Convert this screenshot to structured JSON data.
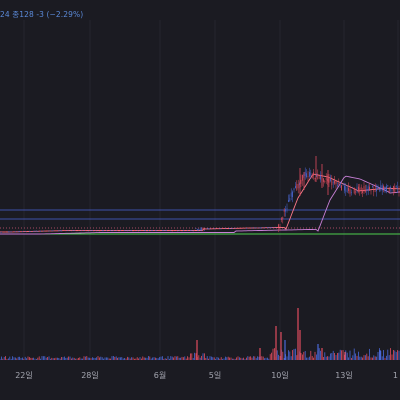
{
  "header": {
    "ohlc_info": "24  종128  -3",
    "change_pct": "(−2.29%)"
  },
  "colors": {
    "background": "#1b1b22",
    "up_candle": "#e04d5f",
    "down_candle": "#4a68d6",
    "ma_short": "#ff7a8a",
    "ma_long": "#c77fd6",
    "line_blue": "#4b63d8",
    "line_green": "#4ccf4f",
    "line_pink_dashed": "#d65b7a",
    "axis_text": "#a4a6b0"
  },
  "x_axis": {
    "ticks": [
      "22일",
      "28일",
      "6월",
      "5일",
      "10일",
      "13일",
      "1"
    ]
  },
  "horizontal_lines": [
    {
      "name": "upper-blue-line",
      "color": "blue"
    },
    {
      "name": "mid-blue-line",
      "color": "blue"
    },
    {
      "name": "support-green-line",
      "color": "green"
    },
    {
      "name": "dashed-level-line",
      "color": "pink"
    }
  ],
  "chart_data": {
    "type": "candlestick",
    "x": [
      "22일",
      "28일",
      "6월",
      "5일",
      "10일",
      "13일"
    ],
    "price_phases": [
      {
        "label": "flat",
        "relative_level": 0.0
      },
      {
        "label": "breakout",
        "relative_level": 1.0
      }
    ],
    "volume": {
      "description": "volume bars; largest spikes near 10일",
      "peaks_at": [
        "6월",
        "10일"
      ]
    }
  }
}
